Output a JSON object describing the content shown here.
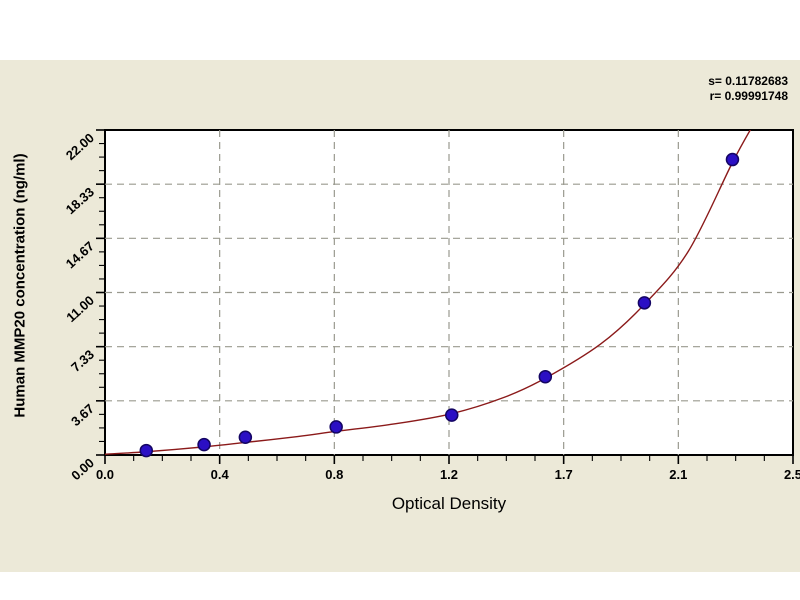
{
  "panel": {
    "background": "#ECE9D8"
  },
  "annotations": {
    "s_label": "s= 0.11782683",
    "r_label": "r= 0.99991748"
  },
  "chart_data": {
    "type": "scatter",
    "title": "",
    "xlabel": "Optical Density",
    "ylabel": "Human MMP20 concentration (ng/ml)",
    "xlim": [
      0,
      2.5
    ],
    "ylim": [
      0,
      22
    ],
    "x_tick_labels": [
      "0.0",
      "0.4",
      "0.8",
      "1.2",
      "1.7",
      "2.1",
      "2.5"
    ],
    "y_tick_labels": [
      "0.00",
      "3.67",
      "7.33",
      "11.00",
      "14.67",
      "18.33",
      "22.00"
    ],
    "x_minor_per_major": 4,
    "y_minor_per_major": 4,
    "grid": true,
    "legend": "none",
    "series": [
      {
        "name": "standard-points",
        "type": "scatter",
        "points": [
          [
            0.15,
            0.3
          ],
          [
            0.36,
            0.7
          ],
          [
            0.51,
            1.2
          ],
          [
            0.84,
            1.9
          ],
          [
            1.26,
            2.7
          ],
          [
            1.6,
            5.3
          ],
          [
            1.96,
            10.3
          ],
          [
            2.28,
            20.0
          ]
        ]
      },
      {
        "name": "fitted-curve",
        "type": "line",
        "samples": [
          [
            0.0,
            0.05
          ],
          [
            0.15,
            0.22
          ],
          [
            0.36,
            0.55
          ],
          [
            0.51,
            0.85
          ],
          [
            0.7,
            1.25
          ],
          [
            0.84,
            1.6
          ],
          [
            1.05,
            2.1
          ],
          [
            1.26,
            2.8
          ],
          [
            1.45,
            3.9
          ],
          [
            1.6,
            5.2
          ],
          [
            1.8,
            7.5
          ],
          [
            1.96,
            10.2
          ],
          [
            2.12,
            13.8
          ],
          [
            2.28,
            19.8
          ],
          [
            2.36,
            22.5
          ]
        ]
      }
    ],
    "colors": {
      "point_fill": "#2B0FC4",
      "point_edge": "#140563",
      "curve": "#8B1A1A",
      "grid": "#9A9A8F",
      "axis": "#000000",
      "plot_bg": "#FFFFFF"
    }
  }
}
